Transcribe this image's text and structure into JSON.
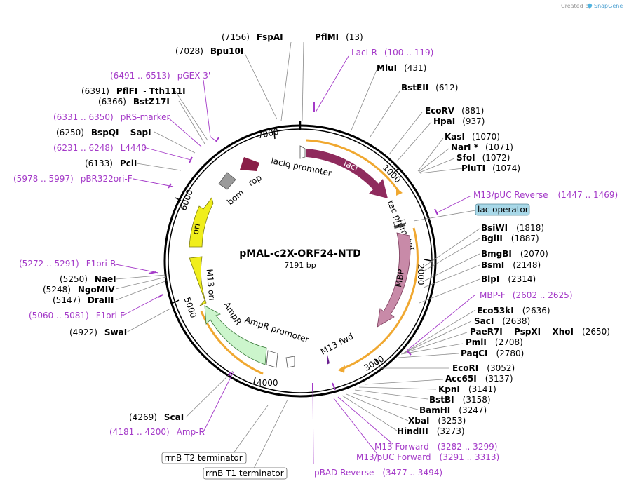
{
  "credit": {
    "prefix": "Created by",
    "brand": "SnapGene"
  },
  "plasmid": {
    "name": "pMAL-c2X-ORF24-NTD",
    "length": "7191 bp"
  },
  "ticks": [
    "1000",
    "2000",
    "3000",
    "4000",
    "5000",
    "6000",
    "7000"
  ],
  "colors": {
    "primer": "#a43ac8",
    "lacI": "#8f2b5d",
    "rop": "#8a1f48",
    "MBP": "#c88aa8",
    "ori": "#f0ee1c",
    "AmpR": "#ccf5cc",
    "bom": "#9a9a9a",
    "orange": "#f0a830",
    "operator": "#a8d8e8"
  },
  "sites_right": [
    {
      "name": "PflMI",
      "pos": "(13)"
    },
    {
      "name": "LacI-R",
      "pos": "(100 .. 119)",
      "primer": true
    },
    {
      "name": "MluI",
      "pos": "(431)"
    },
    {
      "name": "BstEII",
      "pos": "(612)"
    },
    {
      "name": "EcoRV",
      "pos": "(881)"
    },
    {
      "name": "HpaI",
      "pos": "(937)"
    },
    {
      "name": "KasI",
      "pos": "(1070)"
    },
    {
      "name": "NarI *",
      "pos": "(1071)"
    },
    {
      "name": "SfoI",
      "pos": "(1072)"
    },
    {
      "name": "PluTI",
      "pos": "(1074)"
    },
    {
      "name": "M13/pUC Reverse",
      "pos": "(1447 .. 1469)",
      "primer": true
    },
    {
      "name": "BsiWI",
      "pos": "(1818)"
    },
    {
      "name": "BglII",
      "pos": "(1887)"
    },
    {
      "name": "BmgBI",
      "pos": "(2070)"
    },
    {
      "name": "BsmI",
      "pos": "(2148)"
    },
    {
      "name": "BlpI",
      "pos": "(2314)"
    },
    {
      "name": "MBP-F",
      "pos": "(2602 .. 2625)",
      "primer": true
    },
    {
      "name": "Eco53kI",
      "pos": "(2636)"
    },
    {
      "name": "SacI",
      "pos": "(2638)"
    },
    {
      "name": "PaeR7I",
      "pos": "(2650)",
      "extra": [
        "PspXI",
        "XhoI"
      ]
    },
    {
      "name": "PmlI",
      "pos": "(2708)"
    },
    {
      "name": "PaqCI",
      "pos": "(2780)"
    },
    {
      "name": "EcoRI",
      "pos": "(3052)"
    },
    {
      "name": "Acc65I",
      "pos": "(3137)"
    },
    {
      "name": "KpnI",
      "pos": "(3141)"
    },
    {
      "name": "BstBI",
      "pos": "(3158)"
    },
    {
      "name": "BamHI",
      "pos": "(3247)"
    },
    {
      "name": "XbaI",
      "pos": "(3253)"
    },
    {
      "name": "HindIII",
      "pos": "(3273)"
    },
    {
      "name": "M13 Forward",
      "pos": "(3282 .. 3299)",
      "primer": true
    },
    {
      "name": "M13/pUC Forward",
      "pos": "(3291 .. 3313)",
      "primer": true
    },
    {
      "name": "pBAD Reverse",
      "pos": "(3477 .. 3494)",
      "primer": true
    }
  ],
  "sites_left": [
    {
      "name": "FspAI",
      "pos": "(7156)"
    },
    {
      "name": "Bpu10I",
      "pos": "(7028)"
    },
    {
      "name": "pGEX 3'",
      "pos": "(6491 .. 6513)",
      "primer": true
    },
    {
      "name": "PflFI",
      "pos": "(6391)",
      "extra": [
        "Tth111I"
      ]
    },
    {
      "name": "BstZ17I",
      "pos": "(6366)"
    },
    {
      "name": "pRS-marker",
      "pos": "(6331 .. 6350)",
      "primer": true
    },
    {
      "name": "BspQI",
      "pos": "(6250)",
      "extra": [
        "SapI"
      ]
    },
    {
      "name": "L4440",
      "pos": "(6231 .. 6248)",
      "primer": true
    },
    {
      "name": "PciI",
      "pos": "(6133)"
    },
    {
      "name": "pBR322ori-F",
      "pos": "(5978 .. 5997)",
      "primer": true
    },
    {
      "name": "F1ori-R",
      "pos": "(5272 .. 5291)",
      "primer": true
    },
    {
      "name": "NaeI",
      "pos": "(5250)"
    },
    {
      "name": "NgoMIV",
      "pos": "(5248)"
    },
    {
      "name": "DraIII",
      "pos": "(5147)"
    },
    {
      "name": "F1ori-F",
      "pos": "(5060 .. 5081)",
      "primer": true
    },
    {
      "name": "SwaI",
      "pos": "(4922)"
    },
    {
      "name": "ScaI",
      "pos": "(4269)"
    },
    {
      "name": "Amp-R",
      "pos": "(4181 .. 4200)",
      "primer": true
    }
  ],
  "boxed_features": [
    "lac operator",
    "rrnB T2 terminator",
    "rrnB T1 terminator"
  ],
  "features": [
    "lacI",
    "lacIq promoter",
    "tac promoter",
    "MBP",
    "M13 fwd",
    "AmpR",
    "AmpR promoter",
    "M13 ori",
    "ori",
    "bom",
    "rop"
  ]
}
